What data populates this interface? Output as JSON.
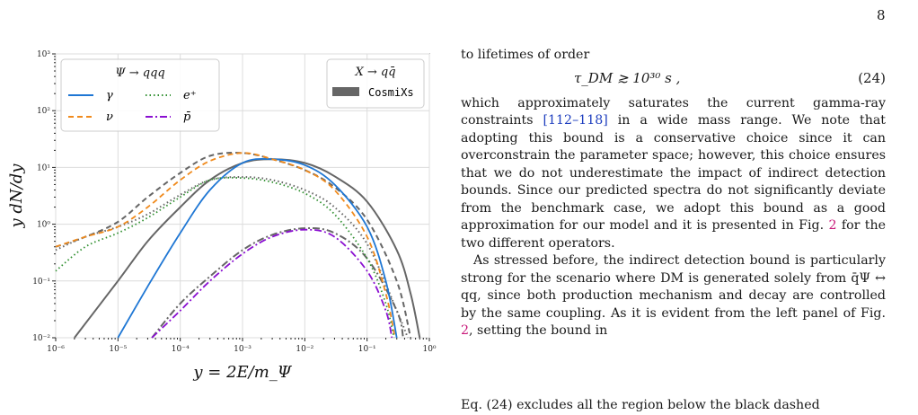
{
  "page_number": "8",
  "figure": {
    "legend_left_title": "Ψ → qqq",
    "legend_right_title": "X → qq̄",
    "legend_right_label": "CosmiXs",
    "xlabel": "y = 2E/m_Ψ",
    "ylabel": "y dN/dy",
    "x_tick_labels": [
      "10⁻⁶",
      "10⁻⁵",
      "10⁻⁴",
      "10⁻³",
      "10⁻²",
      "10⁻¹",
      "10⁰"
    ],
    "y_tick_labels": [
      "10⁻²",
      "10⁻¹",
      "10⁰",
      "10¹",
      "10²",
      "10³"
    ]
  },
  "chart_data": {
    "type": "line",
    "xscale": "log",
    "yscale": "log",
    "xlim": [
      1e-06,
      1
    ],
    "ylim": [
      0.01,
      1000
    ],
    "grid": true,
    "xlabel": "y = 2E/m_Ψ",
    "ylabel": "y dN/dy",
    "legend_placement": "top-left and top-right",
    "series": [
      {
        "name": "γ",
        "style": "solid",
        "color": "#1f77d4",
        "x": [
          1e-05,
          3e-05,
          0.0001,
          0.0003,
          0.001,
          0.003,
          0.01,
          0.03,
          0.1,
          0.2,
          0.3
        ],
        "y": [
          0.01,
          0.08,
          0.7,
          4,
          12,
          14,
          11,
          5,
          0.9,
          0.1,
          0.01
        ]
      },
      {
        "name": "ν",
        "style": "dashed",
        "color": "#f08a1c",
        "x": [
          1e-06,
          3e-06,
          1e-05,
          3e-05,
          0.0001,
          0.0003,
          0.001,
          0.003,
          0.01,
          0.03,
          0.1,
          0.2,
          0.28
        ],
        "y": [
          0.4,
          0.6,
          0.9,
          2,
          6,
          13,
          18,
          14,
          9,
          4,
          0.6,
          0.06,
          0.01
        ]
      },
      {
        "name": "e⁺",
        "style": "dotted",
        "color": "#2f8f2f",
        "x": [
          1e-06,
          3e-06,
          1e-05,
          3e-05,
          0.0001,
          0.0003,
          0.001,
          0.003,
          0.01,
          0.03,
          0.1,
          0.2,
          0.27
        ],
        "y": [
          0.15,
          0.4,
          0.7,
          1.3,
          3,
          6,
          6.5,
          5.5,
          3.5,
          1.5,
          0.25,
          0.04,
          0.01
        ]
      },
      {
        "name": "p̄",
        "style": "dashdot",
        "color": "#8a0fd1",
        "x": [
          3.5e-05,
          0.0001,
          0.0003,
          0.001,
          0.003,
          0.01,
          0.03,
          0.1,
          0.2,
          0.25
        ],
        "y": [
          0.01,
          0.03,
          0.1,
          0.3,
          0.6,
          0.8,
          0.6,
          0.15,
          0.03,
          0.01
        ]
      },
      {
        "name": "CosmiXs",
        "style": "solid",
        "color": "#666666",
        "x": [
          2e-06,
          1e-05,
          3e-05,
          0.0001,
          0.0003,
          0.001,
          0.003,
          0.01,
          0.03,
          0.1,
          0.3,
          0.5,
          0.7
        ],
        "y": [
          0.01,
          0.1,
          0.5,
          2,
          6,
          12,
          14,
          12,
          7,
          2.5,
          0.35,
          0.06,
          0.01
        ]
      },
      {
        "name": "CosmiXs",
        "style": "dashed",
        "color": "#666666",
        "x": [
          1e-06,
          3e-06,
          1e-05,
          3e-05,
          0.0001,
          0.0003,
          0.001,
          0.003,
          0.01,
          0.03,
          0.1,
          0.3,
          0.5
        ],
        "y": [
          0.4,
          0.6,
          1.1,
          3,
          8,
          16,
          18,
          14,
          9,
          4.5,
          1.2,
          0.1,
          0.01
        ]
      },
      {
        "name": "CosmiXs",
        "style": "dotted",
        "color": "#666666",
        "x": [
          1e-06,
          3e-06,
          1e-05,
          3e-05,
          0.0001,
          0.0003,
          0.001,
          0.003,
          0.01,
          0.03,
          0.1,
          0.3,
          0.45
        ],
        "y": [
          0.35,
          0.6,
          0.9,
          1.5,
          3.3,
          6,
          6.8,
          6,
          4,
          2,
          0.45,
          0.03,
          0.01
        ]
      },
      {
        "name": "CosmiXs",
        "style": "dashdot",
        "color": "#666666",
        "x": [
          3.5e-05,
          0.0001,
          0.0003,
          0.001,
          0.003,
          0.01,
          0.03,
          0.1,
          0.3,
          0.38
        ],
        "y": [
          0.01,
          0.04,
          0.12,
          0.35,
          0.65,
          0.85,
          0.7,
          0.25,
          0.03,
          0.01
        ]
      }
    ]
  },
  "text": {
    "line1": "to lifetimes of order",
    "eq_math": "τ_DM ≳ 10³⁰ s ,",
    "eq_num": "(24)",
    "para1_a": "which approximately saturates the current gamma-ray constraints ",
    "para1_cite": "[112–118]",
    "para1_b": " in a wide mass range. We note that adopting this bound is a conservative choice since it can overconstrain the parameter space; however, this choice ensures that we do not underestimate the impact of indirect detection bounds. Since our predicted spectra do not significantly deviate from the benchmark case, we adopt this bound as a good approximation for our model and it is presented in Fig. ",
    "para1_fig": "2",
    "para1_c": " for the two different operators.",
    "para2_a": "As stressed before, the indirect detection bound is particularly strong for the scenario where DM is generated solely from q̄Ψ ↔ qq, since both production mechanism and decay are controlled by the same coupling. As it is evident from the left panel of Fig. ",
    "para2_fig": "2",
    "para2_b": ", setting the bound in",
    "cut_line": "Eq. (24) excludes all the region below the black dashed"
  }
}
